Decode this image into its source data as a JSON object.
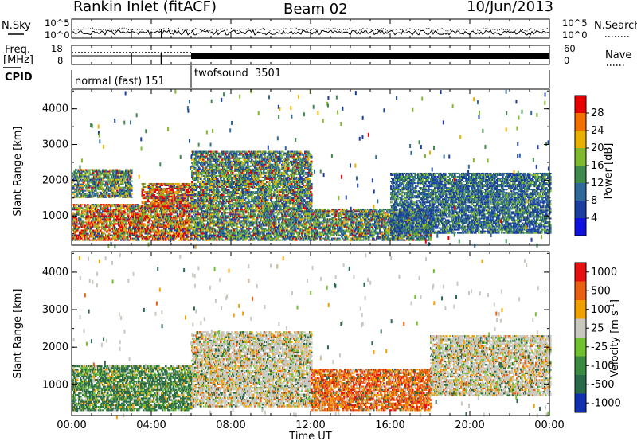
{
  "header": {
    "title": "Rankin Inlet (fitACF)",
    "beam": "Beam 02",
    "date": "10/Jun/2013"
  },
  "top_panels": {
    "nsky_label": "N.Sky",
    "nsearch_label": "N.Search",
    "noise_ticks_left": [
      "10^5",
      "10^0"
    ],
    "noise_ticks_right": [
      "10^5",
      "10^0"
    ],
    "freq_label": "Freq.",
    "freq_unit": "[MHz]",
    "freq_ticks": [
      "18",
      "8"
    ],
    "nave_label": "Nave",
    "nave_ticks": [
      "60",
      "0"
    ],
    "cpid_label": "CPID",
    "modes": [
      {
        "name": "normal (fast)",
        "id": "151",
        "start_hour": 0,
        "end_hour": 6
      },
      {
        "name": "twofsound",
        "id": "3501",
        "start_hour": 6,
        "end_hour": 24
      }
    ]
  },
  "x_axis": {
    "label": "Time UT",
    "ticks": [
      "00:00",
      "04:00",
      "08:00",
      "12:00",
      "16:00",
      "20:00",
      "00:00"
    ]
  },
  "chart_data": [
    {
      "type": "heatmap",
      "panel": "power",
      "ylabel": "Slant Range [km]",
      "yticks": [
        "1000",
        "2000",
        "3000",
        "4000"
      ],
      "ylim": [
        180,
        4550
      ],
      "xlim": [
        0,
        24
      ],
      "colorbar": {
        "label": "Power [dB]",
        "ticks": [
          "4",
          "8",
          "12",
          "16",
          "20",
          "24",
          "28"
        ],
        "colors": [
          "#1010e0",
          "#1a3fa0",
          "#2f6a9a",
          "#3f8a4c",
          "#80b830",
          "#e8b000",
          "#f07000",
          "#e80000"
        ],
        "range": [
          0,
          30
        ]
      },
      "regions": [
        {
          "t0": 0.0,
          "t1": 6.0,
          "r0": 300,
          "r1": 1300,
          "level": "high"
        },
        {
          "t0": 0.0,
          "t1": 3.0,
          "r0": 1500,
          "r1": 2300,
          "level": "mid"
        },
        {
          "t0": 3.5,
          "t1": 6.0,
          "r0": 1200,
          "r1": 1900,
          "level": "high"
        },
        {
          "t0": 6.0,
          "t1": 12.0,
          "r0": 300,
          "r1": 2800,
          "level": "mid"
        },
        {
          "t0": 12.0,
          "t1": 18.0,
          "r0": 300,
          "r1": 1200,
          "level": "mid"
        },
        {
          "t0": 16.0,
          "t1": 24.0,
          "r0": 500,
          "r1": 2200,
          "level": "low"
        }
      ]
    },
    {
      "type": "heatmap",
      "panel": "velocity",
      "ylabel": "Slant Range [km]",
      "yticks": [
        "1000",
        "2000",
        "3000",
        "4000"
      ],
      "ylim": [
        180,
        4550
      ],
      "xlim": [
        0,
        24
      ],
      "colorbar": {
        "label": "Velocity [m s^-1]",
        "ticks": [
          "1000",
          "500",
          "100",
          "25",
          "-25",
          "-100",
          "-500",
          "-1000"
        ],
        "colors": [
          "#1030b0",
          "#2a6a4a",
          "#3a8a40",
          "#70c030",
          "#c8c8c0",
          "#f0a000",
          "#e86010",
          "#e81010"
        ],
        "range": [
          -1000,
          1000
        ]
      },
      "regions": [
        {
          "t0": 0.0,
          "t1": 6.0,
          "r0": 300,
          "r1": 1500,
          "level": "green"
        },
        {
          "t0": 6.0,
          "t1": 12.0,
          "r0": 400,
          "r1": 2400,
          "level": "gray"
        },
        {
          "t0": 12.0,
          "t1": 18.0,
          "r0": 300,
          "r1": 1400,
          "level": "orange"
        },
        {
          "t0": 18.0,
          "t1": 24.0,
          "r0": 700,
          "r1": 2300,
          "level": "gray"
        }
      ]
    }
  ]
}
